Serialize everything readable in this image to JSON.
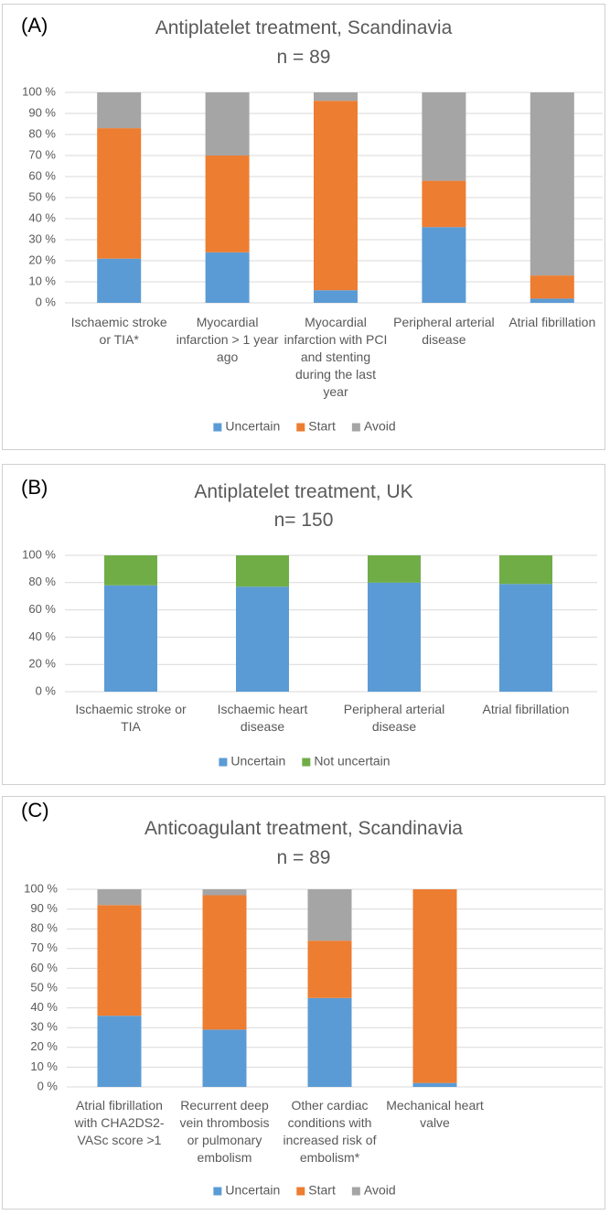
{
  "chart_data": [
    {
      "type": "stacked_bar",
      "panel_label": "(A)",
      "title": "Antiplatelet treatment, Scandinavia",
      "subtitle": "n = 89",
      "categories": [
        "Ischaemic stroke or TIA*",
        "Myocardial infarction > 1 year ago",
        "Myocardial infarction with PCI and stenting during the last year",
        "Peripheral arterial disease",
        "Atrial fibrillation"
      ],
      "series": [
        {
          "name": "Uncertain",
          "color": "#5b9bd5",
          "values": [
            21,
            24,
            6,
            36,
            2
          ]
        },
        {
          "name": "Start",
          "color": "#ed7d31",
          "values": [
            62,
            46,
            90,
            22,
            11
          ]
        },
        {
          "name": "Avoid",
          "color": "#a5a5a5",
          "values": [
            17,
            30,
            4,
            42,
            87
          ]
        }
      ],
      "ylim": [
        0,
        100
      ],
      "yticks": [
        {
          "value": 0,
          "label": "0 %"
        },
        {
          "value": 10,
          "label": "10 %"
        },
        {
          "value": 20,
          "label": "20 %"
        },
        {
          "value": 30,
          "label": "30 %"
        },
        {
          "value": 40,
          "label": "40 %"
        },
        {
          "value": 50,
          "label": "50 %"
        },
        {
          "value": 60,
          "label": "60 %"
        },
        {
          "value": 70,
          "label": "70 %"
        },
        {
          "value": 80,
          "label": "80 %"
        },
        {
          "value": 90,
          "label": "90 %"
        },
        {
          "value": 100,
          "label": "100 %"
        }
      ],
      "grid": true,
      "legend": "bottom"
    },
    {
      "type": "stacked_bar",
      "panel_label": "(B)",
      "title": "Antiplatelet treatment, UK",
      "subtitle": "n= 150",
      "categories": [
        "Ischaemic stroke or TIA",
        "Ischaemic heart disease",
        "Peripheral arterial disease",
        "Atrial fibrillation"
      ],
      "series": [
        {
          "name": "Uncertain",
          "color": "#5b9bd5",
          "values": [
            78,
            77,
            80,
            79
          ]
        },
        {
          "name": "Not uncertain",
          "color": "#70ad47",
          "values": [
            22,
            23,
            20,
            21
          ]
        }
      ],
      "ylim": [
        0,
        100
      ],
      "yticks": [
        {
          "value": 0,
          "label": "0 %"
        },
        {
          "value": 20,
          "label": "20 %"
        },
        {
          "value": 40,
          "label": "40 %"
        },
        {
          "value": 60,
          "label": "60 %"
        },
        {
          "value": 80,
          "label": "80 %"
        },
        {
          "value": 100,
          "label": "100 %"
        }
      ],
      "grid": true,
      "legend": "bottom"
    },
    {
      "type": "stacked_bar",
      "panel_label": "(C)",
      "title": "Anticoagulant treatment, Scandinavia",
      "subtitle": "n = 89",
      "categories": [
        "Atrial fibrillation with CHA2DS2-VASc score >1",
        "Recurrent deep vein thrombosis or pulmonary embolism",
        "Other cardiac conditions with increased risk of embolism*",
        "Mechanical heart valve"
      ],
      "series": [
        {
          "name": "Uncertain",
          "color": "#5b9bd5",
          "values": [
            36,
            29,
            45,
            2
          ]
        },
        {
          "name": "Start",
          "color": "#ed7d31",
          "values": [
            56,
            68,
            29,
            98
          ]
        },
        {
          "name": "Avoid",
          "color": "#a5a5a5",
          "values": [
            8,
            3,
            26,
            0
          ]
        }
      ],
      "ylim": [
        0,
        100
      ],
      "yticks": [
        {
          "value": 0,
          "label": "0 %"
        },
        {
          "value": 10,
          "label": "10 %"
        },
        {
          "value": 20,
          "label": "20 %"
        },
        {
          "value": 30,
          "label": "30 %"
        },
        {
          "value": 40,
          "label": "40 %"
        },
        {
          "value": 50,
          "label": "50 %"
        },
        {
          "value": 60,
          "label": "60 %"
        },
        {
          "value": 70,
          "label": "70 %"
        },
        {
          "value": 80,
          "label": "80 %"
        },
        {
          "value": 90,
          "label": "90 %"
        },
        {
          "value": 100,
          "label": "100 %"
        }
      ],
      "grid": true,
      "legend": "bottom"
    }
  ]
}
